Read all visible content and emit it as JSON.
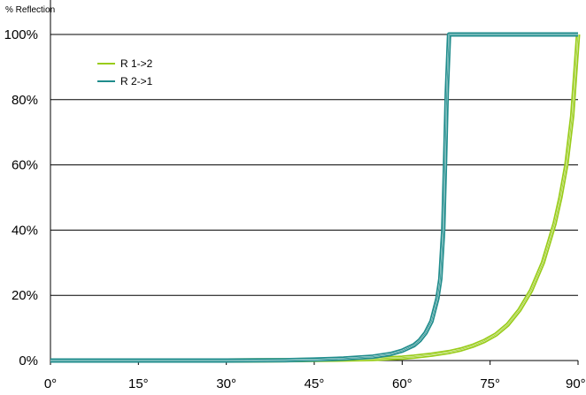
{
  "chart_data": {
    "type": "line",
    "title": "",
    "ylabel": "% Reflection",
    "xlabel": "",
    "xlim": [
      0,
      90
    ],
    "ylim": [
      0,
      100
    ],
    "x_ticks": [
      "0°",
      "15°",
      "30°",
      "45°",
      "60°",
      "75°",
      "90°"
    ],
    "y_ticks": [
      "0%",
      "20%",
      "40%",
      "60%",
      "80%",
      "100%"
    ],
    "grid": "horizontal",
    "legend_position": "top-left",
    "colors": {
      "r12": "#99cc1a",
      "r21": "#1f8c8c"
    },
    "series": [
      {
        "name": "R 1->2",
        "color": "#99cc1a",
        "x": [
          0,
          20,
          30,
          40,
          45,
          50,
          55,
          60,
          62,
          65,
          68,
          70,
          72,
          74,
          76,
          78,
          80,
          82,
          84,
          86,
          87,
          88,
          89,
          90
        ],
        "y": [
          0,
          0,
          0,
          0.1,
          0.2,
          0.3,
          0.5,
          0.9,
          1.2,
          1.8,
          2.6,
          3.4,
          4.5,
          6,
          8,
          11,
          15.5,
          21.5,
          30,
          42,
          50,
          60,
          75,
          100
        ]
      },
      {
        "name": "R 2->1",
        "color": "#1f8c8c",
        "x": [
          0,
          20,
          30,
          40,
          45,
          50,
          55,
          58,
          60,
          62,
          63,
          64,
          65,
          66,
          66.5,
          67,
          67.3,
          67.6,
          68,
          68.3,
          90
        ],
        "y": [
          0,
          0,
          0,
          0.1,
          0.3,
          0.6,
          1.2,
          2,
          3,
          4.7,
          6.2,
          8.5,
          12,
          19,
          25,
          40,
          60,
          82,
          100,
          100,
          100
        ]
      }
    ]
  }
}
